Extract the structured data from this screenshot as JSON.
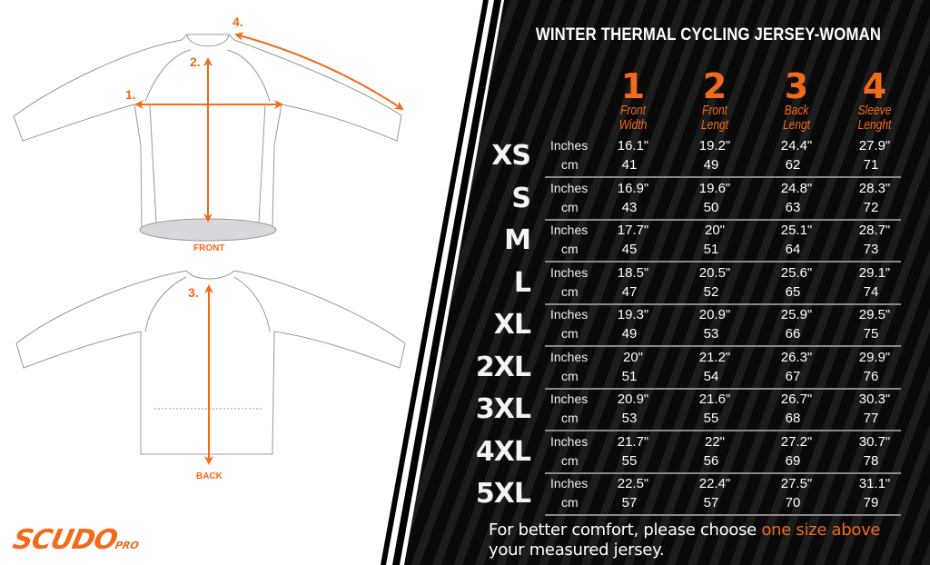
{
  "title": "WINTER  THERMAL CYCLING JERSEY-WOMAN",
  "colors": {
    "accent": "#f26a1b",
    "panel": "#000000"
  },
  "brand": {
    "logo": "SCUDO",
    "logo_suffix": "PRO"
  },
  "diagram": {
    "front_label": "FRONT",
    "back_label": "BACK",
    "markers": [
      "1.",
      "2.",
      "3.",
      "4."
    ]
  },
  "columns": [
    {
      "num": "1",
      "label1": "Front",
      "label2": "Width"
    },
    {
      "num": "2",
      "label1": "Front",
      "label2": "Lengt"
    },
    {
      "num": "3",
      "label1": "Back",
      "label2": "Lengt"
    },
    {
      "num": "4",
      "label1": "Sleeve",
      "label2": "Lenght"
    }
  ],
  "units": {
    "inches": "Inches",
    "cm": "cm"
  },
  "rows": [
    {
      "size": "XS",
      "inches": [
        "16.1\"",
        "19.2\"",
        "24.4\"",
        "27.9\""
      ],
      "cm": [
        "41",
        "49",
        "62",
        "71"
      ]
    },
    {
      "size": "S",
      "inches": [
        "16.9\"",
        "19.6\"",
        "24.8\"",
        "28.3\""
      ],
      "cm": [
        "43",
        "50",
        "63",
        "72"
      ]
    },
    {
      "size": "M",
      "inches": [
        "17.7\"",
        "20\"",
        "25.1\"",
        "28.7\""
      ],
      "cm": [
        "45",
        "51",
        "64",
        "73"
      ]
    },
    {
      "size": "L",
      "inches": [
        "18.5\"",
        "20.5\"",
        "25.6\"",
        "29.1\""
      ],
      "cm": [
        "47",
        "52",
        "65",
        "74"
      ]
    },
    {
      "size": "XL",
      "inches": [
        "19.3\"",
        "20.9\"",
        "25.9\"",
        "29.5\""
      ],
      "cm": [
        "49",
        "53",
        "66",
        "75"
      ]
    },
    {
      "size": "2XL",
      "inches": [
        "20\"",
        "21.2\"",
        "26.3\"",
        "29.9\""
      ],
      "cm": [
        "51",
        "54",
        "67",
        "76"
      ]
    },
    {
      "size": "3XL",
      "inches": [
        "20.9\"",
        "21.6\"",
        "26.7\"",
        "30.3\""
      ],
      "cm": [
        "53",
        "55",
        "68",
        "77"
      ]
    },
    {
      "size": "4XL",
      "inches": [
        "21.7\"",
        "22\"",
        "27.2\"",
        "30.7\""
      ],
      "cm": [
        "55",
        "56",
        "69",
        "78"
      ]
    },
    {
      "size": "5XL",
      "inches": [
        "22.5\"",
        "22.4\"",
        "27.5\"",
        "31.1\""
      ],
      "cm": [
        "57",
        "57",
        "70",
        "79"
      ]
    }
  ],
  "note": {
    "text1": "For better comfort, please choose ",
    "highlight": "one size above",
    "text2": "your measured jersey."
  }
}
